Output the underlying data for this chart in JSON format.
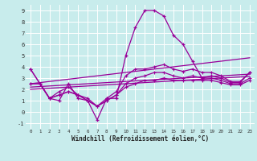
{
  "xlabel": "Windchill (Refroidissement éolien,°C)",
  "background_color": "#c8ecec",
  "grid_color": "#ffffff",
  "line_color": "#990099",
  "xlim": [
    -0.5,
    23.5
  ],
  "ylim": [
    -1.5,
    9.5
  ],
  "xticks": [
    0,
    1,
    2,
    3,
    4,
    5,
    6,
    7,
    8,
    9,
    10,
    11,
    12,
    13,
    14,
    15,
    16,
    17,
    18,
    19,
    20,
    21,
    22,
    23
  ],
  "yticks": [
    -1,
    0,
    1,
    2,
    3,
    4,
    5,
    6,
    7,
    8,
    9
  ],
  "series": [
    [
      3.8,
      2.5,
      1.2,
      1.0,
      2.5,
      1.2,
      1.0,
      -0.7,
      1.2,
      1.2,
      5.0,
      7.5,
      9.0,
      9.0,
      8.5,
      6.8,
      6.0,
      4.5,
      3.0,
      3.2,
      3.0,
      2.6,
      2.6,
      3.5
    ],
    [
      3.8,
      2.5,
      1.2,
      1.8,
      2.2,
      1.5,
      1.2,
      0.5,
      1.2,
      1.8,
      3.2,
      3.8,
      3.8,
      4.0,
      4.2,
      3.8,
      3.6,
      3.8,
      3.5,
      3.5,
      3.2,
      2.7,
      2.7,
      3.5
    ],
    [
      2.5,
      2.5,
      1.2,
      1.5,
      1.8,
      1.5,
      1.0,
      0.5,
      1.0,
      1.5,
      2.5,
      3.0,
      3.2,
      3.5,
      3.5,
      3.2,
      3.0,
      3.2,
      3.0,
      3.0,
      2.8,
      2.5,
      2.5,
      3.0
    ],
    [
      2.5,
      2.5,
      1.2,
      1.5,
      1.8,
      1.5,
      1.0,
      0.5,
      1.0,
      1.5,
      2.2,
      2.5,
      2.8,
      2.8,
      3.0,
      2.8,
      2.8,
      2.8,
      2.8,
      2.8,
      2.6,
      2.4,
      2.4,
      2.8
    ]
  ],
  "linear_series": [
    [
      2.5,
      2.6,
      2.7,
      2.8,
      2.9,
      3.0,
      3.1,
      3.2,
      3.3,
      3.4,
      3.5,
      3.6,
      3.7,
      3.8,
      3.9,
      4.0,
      4.1,
      4.2,
      4.3,
      4.4,
      4.5,
      4.6,
      4.7,
      4.8
    ],
    [
      2.2,
      2.25,
      2.3,
      2.35,
      2.4,
      2.45,
      2.5,
      2.55,
      2.6,
      2.65,
      2.7,
      2.75,
      2.8,
      2.85,
      2.9,
      2.95,
      3.0,
      3.05,
      3.1,
      3.15,
      3.2,
      3.25,
      3.3,
      3.35
    ],
    [
      2.0,
      2.05,
      2.1,
      2.15,
      2.2,
      2.25,
      2.3,
      2.35,
      2.4,
      2.45,
      2.5,
      2.55,
      2.6,
      2.65,
      2.7,
      2.75,
      2.8,
      2.85,
      2.9,
      2.95,
      3.0,
      3.05,
      3.1,
      3.15
    ]
  ]
}
